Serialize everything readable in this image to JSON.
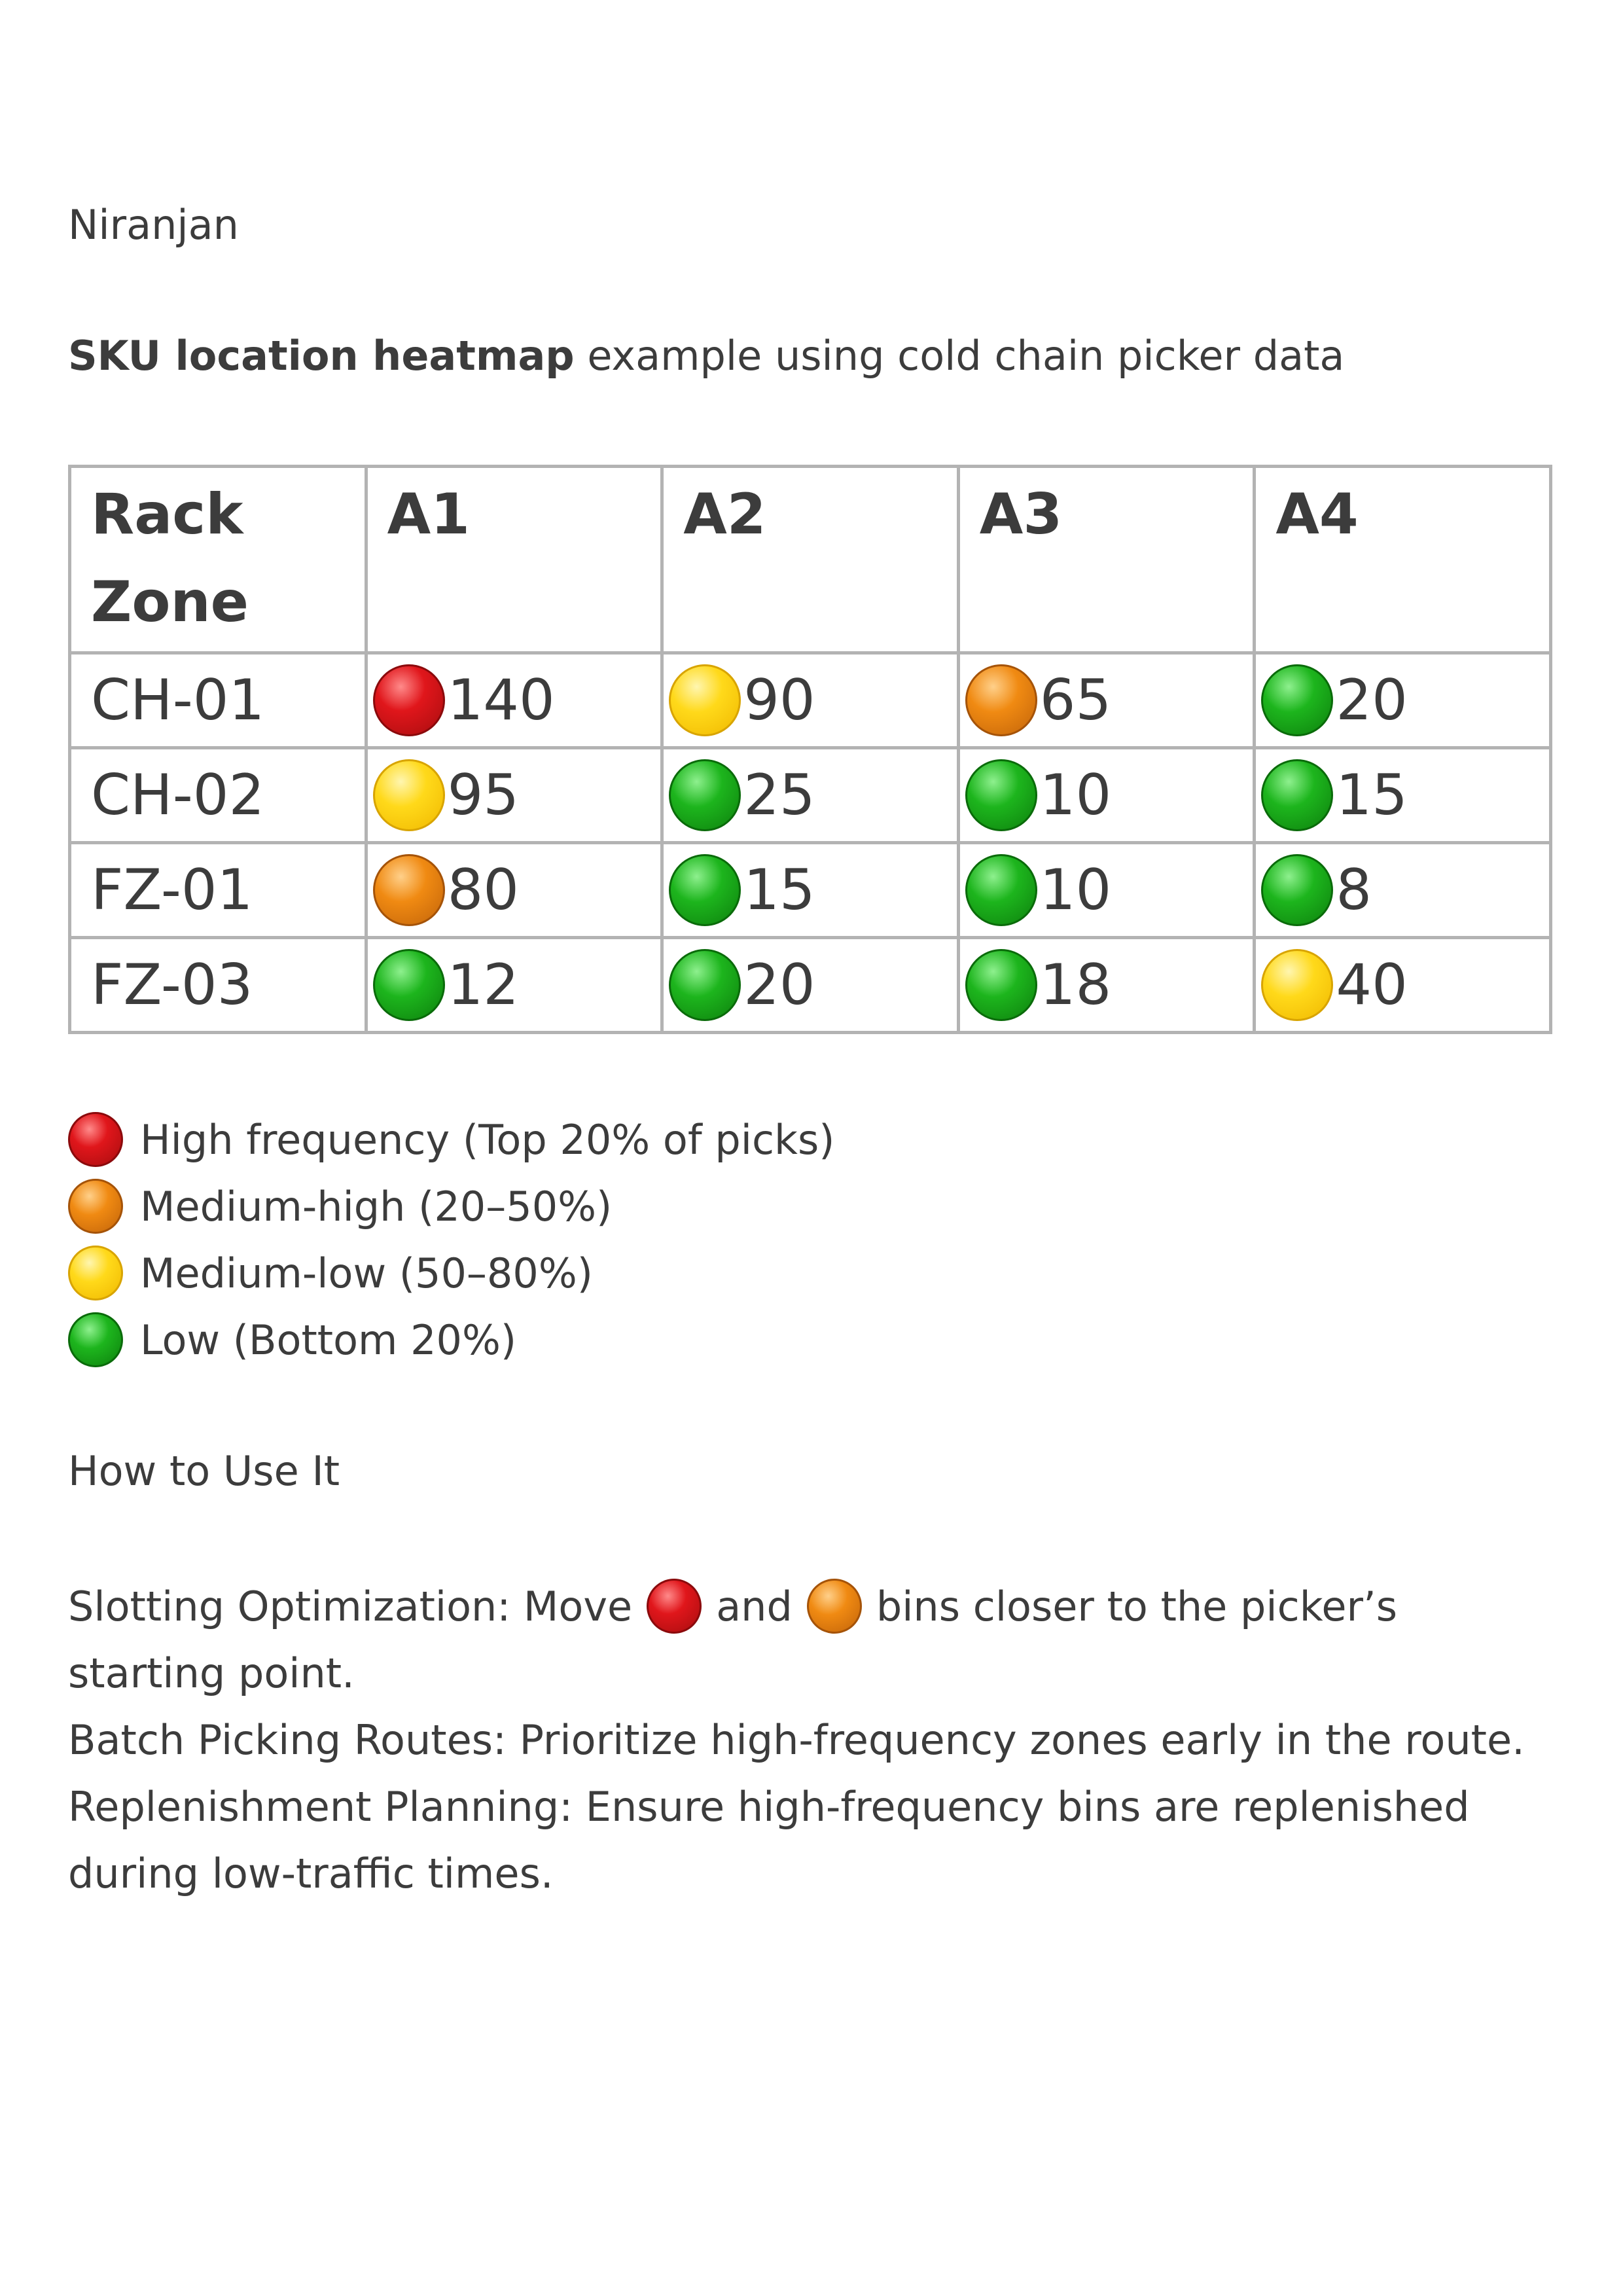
{
  "author": "Niranjan",
  "intro": {
    "bold": "SKU location heatmap",
    "rest": " example using cold chain picker data"
  },
  "table": {
    "header": {
      "rack_line1": "Rack",
      "rack_line2": "Zone",
      "columns": [
        "A1",
        "A2",
        "A3",
        "A4"
      ]
    },
    "rows": [
      {
        "zone": "CH-01",
        "cells": [
          {
            "value": "140",
            "level": "red"
          },
          {
            "value": "90",
            "level": "yellow"
          },
          {
            "value": "65",
            "level": "orange"
          },
          {
            "value": "20",
            "level": "green"
          }
        ]
      },
      {
        "zone": "CH-02",
        "cells": [
          {
            "value": "95",
            "level": "yellow"
          },
          {
            "value": "25",
            "level": "green"
          },
          {
            "value": "10",
            "level": "green"
          },
          {
            "value": "15",
            "level": "green"
          }
        ]
      },
      {
        "zone": "FZ-01",
        "cells": [
          {
            "value": "80",
            "level": "orange"
          },
          {
            "value": "15",
            "level": "green"
          },
          {
            "value": "10",
            "level": "green"
          },
          {
            "value": "8",
            "level": "green"
          }
        ]
      },
      {
        "zone": "FZ-03",
        "cells": [
          {
            "value": "12",
            "level": "green"
          },
          {
            "value": "20",
            "level": "green"
          },
          {
            "value": "18",
            "level": "green"
          },
          {
            "value": "40",
            "level": "yellow"
          }
        ]
      }
    ]
  },
  "legend": [
    {
      "level": "red",
      "label": "High frequency (Top 20% of picks)"
    },
    {
      "level": "orange",
      "label": "Medium-high (20–50%)"
    },
    {
      "level": "yellow",
      "label": "Medium-low (50–80%)"
    },
    {
      "level": "green",
      "label": "Low (Bottom 20%)"
    }
  ],
  "howto": {
    "title": "How to Use It",
    "slotting_part1": "Slotting Optimization: Move",
    "slotting_and": "and",
    "slotting_part2": "bins closer to the picker’s",
    "slotting_part3": "starting point.",
    "batch": "Batch Picking Routes: Prioritize high-frequency zones early in the route.",
    "replenish_part1": "Replenishment Planning: Ensure high-frequency bins are replenished",
    "replenish_part2": "during low-traffic times."
  },
  "colors": {
    "red": "#e0161b",
    "orange": "#f08a12",
    "yellow": "#ffd91a",
    "green": "#1db51d",
    "text": "#3c3c3c",
    "grid": "#b3b3b3"
  }
}
